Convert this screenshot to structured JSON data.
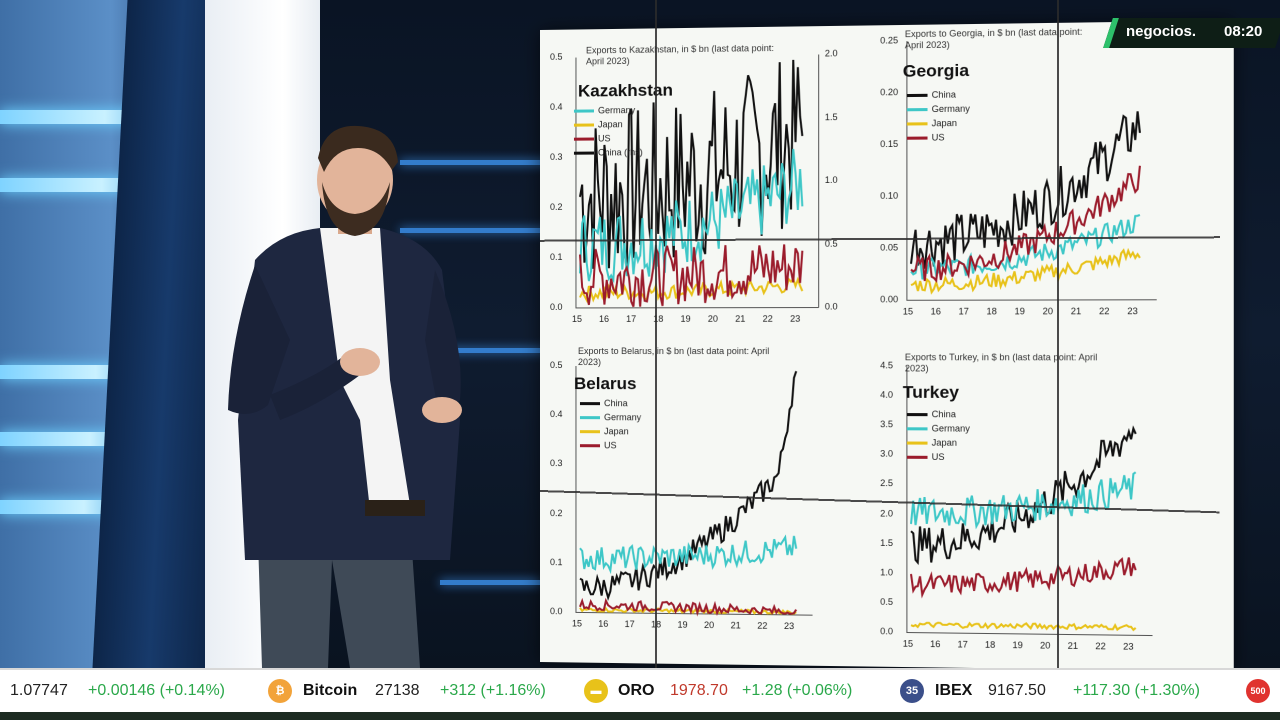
{
  "broadcast": {
    "channel": "negocios.",
    "time": "08:20"
  },
  "panel": {
    "charts": [
      {
        "country": "Kazakhstan",
        "subtitle": "Exports to Kazakhstan, in $ bn (last data point: April 2023)",
        "legend": [
          "Germany",
          "Japan",
          "US",
          "China (rhs)"
        ],
        "y_left_ticks": [
          "0.5",
          "0.4",
          "0.3",
          "0.2",
          "0.1",
          "0.0"
        ],
        "y_right_ticks": [
          "2.0",
          "1.5",
          "1.0",
          "0.5",
          "0.0"
        ],
        "x_ticks": [
          "15",
          "16",
          "17",
          "18",
          "19",
          "20",
          "21",
          "22",
          "23"
        ]
      },
      {
        "country": "Georgia",
        "subtitle": "Exports to Georgia, in $ bn (last data point: April 2023)",
        "legend": [
          "China",
          "Germany",
          "Japan",
          "US"
        ],
        "y_left_ticks": [
          "0.25",
          "0.20",
          "0.15",
          "0.10",
          "0.05",
          "0.00"
        ],
        "x_ticks": [
          "15",
          "16",
          "17",
          "18",
          "19",
          "20",
          "21",
          "22",
          "23"
        ]
      },
      {
        "country": "Belarus",
        "subtitle": "Exports to Belarus, in $ bn (last data point: April 2023)",
        "legend": [
          "China",
          "Germany",
          "Japan",
          "US"
        ],
        "y_left_ticks": [
          "0.5",
          "0.4",
          "0.3",
          "0.2",
          "0.1",
          "0.0"
        ],
        "x_ticks": [
          "15",
          "16",
          "17",
          "18",
          "19",
          "20",
          "21",
          "22",
          "23"
        ]
      },
      {
        "country": "Turkey",
        "subtitle": "Exports to Turkey, in $ bn (last data point: April 2023)",
        "legend": [
          "China",
          "Germany",
          "Japan",
          "US"
        ],
        "y_left_ticks": [
          "4.5",
          "4.0",
          "3.5",
          "3.0",
          "2.5",
          "2.0",
          "1.5",
          "1.0",
          "0.5",
          "0.0"
        ],
        "x_ticks": [
          "15",
          "16",
          "17",
          "18",
          "19",
          "20",
          "21",
          "22",
          "23"
        ]
      }
    ],
    "series_colors": {
      "China": "#111111",
      "Germany": "#3ec7c7",
      "Japan": "#e8c21a",
      "US": "#9b1c2c"
    }
  },
  "ticker": {
    "items": [
      {
        "value": "1.07747",
        "change": "+0.00146 (+0.14%)"
      },
      {
        "icon": "bitcoin-icon",
        "name": "Bitcoin",
        "value": "27138",
        "change": "+312 (+1.16%)"
      },
      {
        "icon": "gold-icon",
        "name": "ORO",
        "value": "1978.70",
        "change": "+1.28 (+0.06%)"
      },
      {
        "icon": "ibex-icon",
        "badge": "35",
        "name": "IBEX",
        "value": "9167.50",
        "change": "+117.30 (+1.30%)"
      },
      {
        "badge": "500"
      }
    ]
  }
}
